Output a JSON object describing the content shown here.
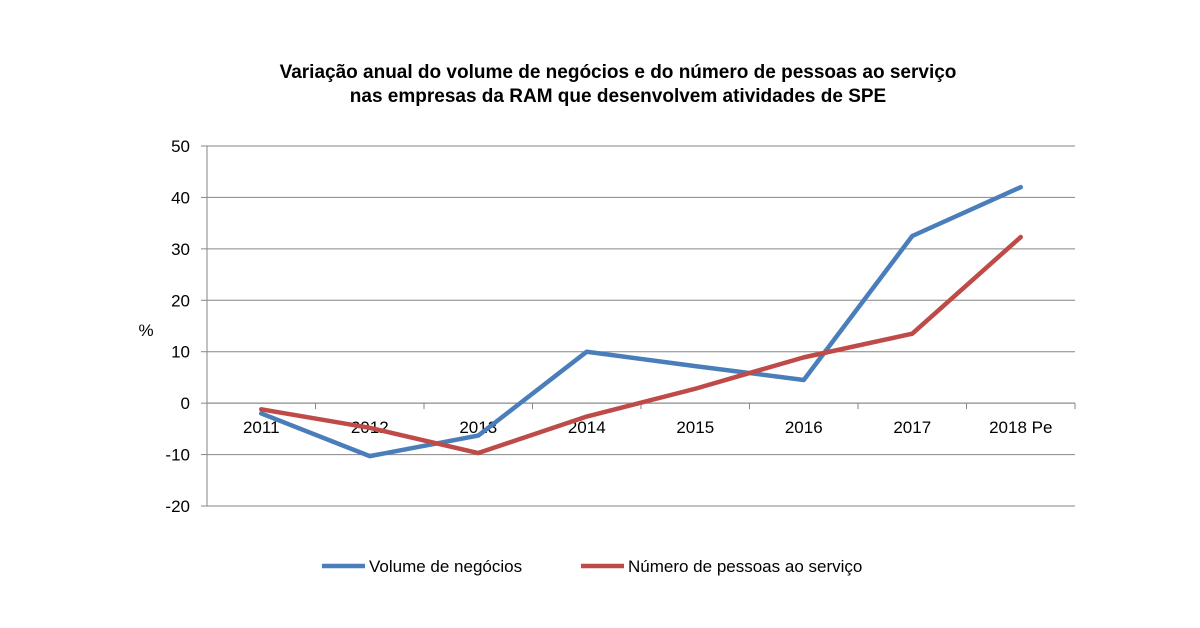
{
  "chart_data": {
    "type": "line",
    "title_line1": "Variação anual do volume de negócios e do número de pessoas ao serviço",
    "title_line2": "nas empresas da RAM que desenvolvem atividades de SPE",
    "ylabel": "%",
    "xlabel": "",
    "categories": [
      "2011",
      "2012",
      "2013",
      "2014",
      "2015",
      "2016",
      "2017",
      "2018 Pe"
    ],
    "ylim": [
      -20,
      50
    ],
    "yticks": [
      "50",
      "40",
      "30",
      "20",
      "10",
      "0",
      "-10",
      "-20"
    ],
    "grid": true,
    "legend_position": "bottom",
    "series": [
      {
        "name": "Volume de negócios",
        "color": "#4a7ebb",
        "values": [
          -2,
          -10.3,
          -6.3,
          10,
          7.2,
          4.5,
          32.5,
          42
        ]
      },
      {
        "name": "Número de pessoas ao serviço",
        "color": "#be4b48",
        "values": [
          -1.2,
          -4.8,
          -9.7,
          -2.6,
          2.8,
          8.9,
          13.5,
          32.3
        ]
      }
    ]
  }
}
